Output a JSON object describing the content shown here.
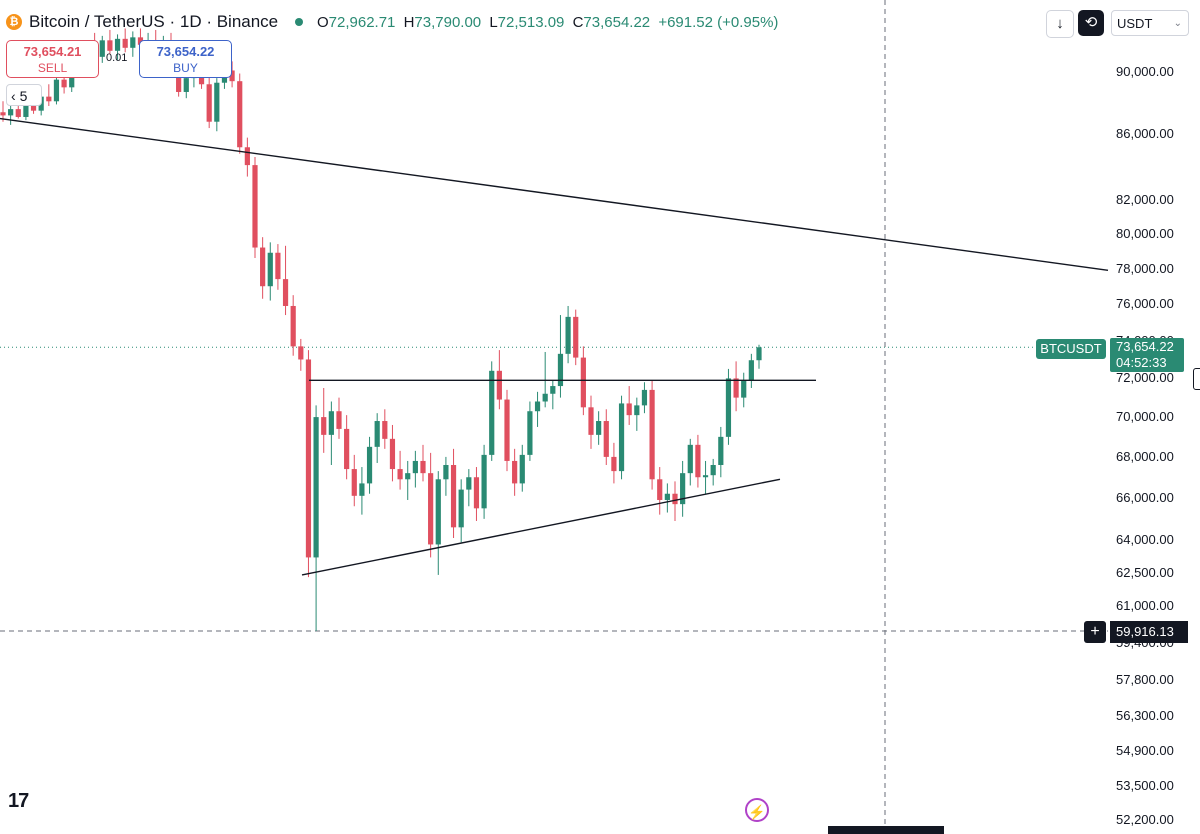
{
  "header": {
    "coin_glyph": "₿",
    "symbol_title": "Bitcoin / TetherUS · 1D · Binance",
    "ohlc": {
      "o_label": "O",
      "o_value": "72,962.71",
      "h_label": "H",
      "h_value": "73,790.00",
      "l_label": "L",
      "l_value": "72,513.09",
      "c_label": "C",
      "c_value": "73,654.22",
      "change": "+691.52 (+0.95%)"
    },
    "status_color": "#2a8a73"
  },
  "trade": {
    "sell_price": "73,654.21",
    "sell_label": "SELL",
    "buy_price": "73,654.22",
    "buy_label": "BUY",
    "spread": "0.01"
  },
  "collapse_indicator": {
    "glyph": "‹",
    "count": "5"
  },
  "toolbar": {
    "down_icon": "↓",
    "sync_icon": "⟲",
    "currency": "USDT",
    "currency_chevron": "⌄"
  },
  "price_axis": {
    "labels": [
      "90,000.00",
      "86,000.00",
      "82,000.00",
      "80,000.00",
      "78,000.00",
      "76,000.00",
      "74,000.00",
      "72,000.00",
      "70,000.00",
      "68,000.00",
      "66,000.00",
      "64,000.00",
      "62,500.00",
      "61,000.00",
      "59,400.00",
      "57,800.00",
      "56,300.00",
      "54,900.00",
      "53,500.00",
      "52,200.00"
    ],
    "symbol_tag": "BTCUSDT",
    "last_price": "73,654.22",
    "countdown": "04:52:33",
    "crosshair_price": "59,916.13",
    "crosshair_plus": "+"
  },
  "logo_text": "17",
  "bolt_icon": "⚡",
  "colors": {
    "up": "#2a8a73",
    "down": "#e04f5f",
    "line": "#131722"
  },
  "chart_data": {
    "type": "candlestick",
    "scale": "log",
    "ylim": [
      52000,
      93000
    ],
    "note_trendlines": "downtrend line, flat resistance ~71,900, rising support",
    "candles": [
      {
        "o": 87400,
        "h": 88100,
        "l": 86800,
        "c": 87200
      },
      {
        "o": 87200,
        "h": 87900,
        "l": 86600,
        "c": 87600
      },
      {
        "o": 87600,
        "h": 88300,
        "l": 87000,
        "c": 87100
      },
      {
        "o": 87100,
        "h": 88200,
        "l": 86900,
        "c": 88000
      },
      {
        "o": 88000,
        "h": 88800,
        "l": 87300,
        "c": 87500
      },
      {
        "o": 87500,
        "h": 88600,
        "l": 87200,
        "c": 88400
      },
      {
        "o": 88400,
        "h": 89200,
        "l": 87800,
        "c": 88100
      },
      {
        "o": 88100,
        "h": 89800,
        "l": 87900,
        "c": 89500
      },
      {
        "o": 89500,
        "h": 90200,
        "l": 88600,
        "c": 89000
      },
      {
        "o": 89000,
        "h": 90500,
        "l": 88700,
        "c": 90300
      },
      {
        "o": 90300,
        "h": 91200,
        "l": 89800,
        "c": 90900
      },
      {
        "o": 90900,
        "h": 92000,
        "l": 90200,
        "c": 91700
      },
      {
        "o": 91700,
        "h": 92600,
        "l": 90800,
        "c": 91000
      },
      {
        "o": 91000,
        "h": 92400,
        "l": 90600,
        "c": 92100
      },
      {
        "o": 92100,
        "h": 92800,
        "l": 91200,
        "c": 91400
      },
      {
        "o": 91400,
        "h": 92500,
        "l": 90800,
        "c": 92200
      },
      {
        "o": 92200,
        "h": 92900,
        "l": 91300,
        "c": 91600
      },
      {
        "o": 91600,
        "h": 92700,
        "l": 91000,
        "c": 92300
      },
      {
        "o": 92300,
        "h": 92900,
        "l": 91400,
        "c": 91800
      },
      {
        "o": 91800,
        "h": 92600,
        "l": 91200,
        "c": 92000
      },
      {
        "o": 92000,
        "h": 92800,
        "l": 91100,
        "c": 91300
      },
      {
        "o": 91300,
        "h": 92400,
        "l": 90700,
        "c": 91900
      },
      {
        "o": 91900,
        "h": 92600,
        "l": 89900,
        "c": 90200
      },
      {
        "o": 90200,
        "h": 90800,
        "l": 88400,
        "c": 88700
      },
      {
        "o": 88700,
        "h": 89900,
        "l": 88300,
        "c": 89600
      },
      {
        "o": 89600,
        "h": 90600,
        "l": 89000,
        "c": 90100
      },
      {
        "o": 90100,
        "h": 90700,
        "l": 88900,
        "c": 89200
      },
      {
        "o": 89200,
        "h": 89800,
        "l": 86400,
        "c": 86800
      },
      {
        "o": 86800,
        "h": 89600,
        "l": 86200,
        "c": 89300
      },
      {
        "o": 89300,
        "h": 90900,
        "l": 88900,
        "c": 90100
      },
      {
        "o": 90100,
        "h": 90700,
        "l": 89000,
        "c": 89400
      },
      {
        "o": 89400,
        "h": 89900,
        "l": 84800,
        "c": 85200
      },
      {
        "o": 85200,
        "h": 85800,
        "l": 83400,
        "c": 84100
      },
      {
        "o": 84100,
        "h": 84600,
        "l": 78600,
        "c": 79200
      },
      {
        "o": 79200,
        "h": 79800,
        "l": 76300,
        "c": 77000
      },
      {
        "o": 77000,
        "h": 79500,
        "l": 76200,
        "c": 78900
      },
      {
        "o": 78900,
        "h": 79400,
        "l": 76800,
        "c": 77400
      },
      {
        "o": 77400,
        "h": 79300,
        "l": 75400,
        "c": 75900
      },
      {
        "o": 75900,
        "h": 76500,
        "l": 73200,
        "c": 73700
      },
      {
        "o": 73700,
        "h": 74100,
        "l": 72400,
        "c": 73000
      },
      {
        "o": 73000,
        "h": 73500,
        "l": 62300,
        "c": 63200
      },
      {
        "o": 63200,
        "h": 70600,
        "l": 59900,
        "c": 70000
      },
      {
        "o": 70000,
        "h": 71500,
        "l": 68200,
        "c": 69100
      },
      {
        "o": 69100,
        "h": 70800,
        "l": 67600,
        "c": 70300
      },
      {
        "o": 70300,
        "h": 71000,
        "l": 68900,
        "c": 69400
      },
      {
        "o": 69400,
        "h": 70100,
        "l": 66900,
        "c": 67400
      },
      {
        "o": 67400,
        "h": 68100,
        "l": 65600,
        "c": 66100
      },
      {
        "o": 66100,
        "h": 67500,
        "l": 65200,
        "c": 66700
      },
      {
        "o": 66700,
        "h": 69000,
        "l": 66200,
        "c": 68500
      },
      {
        "o": 68500,
        "h": 70200,
        "l": 67700,
        "c": 69800
      },
      {
        "o": 69800,
        "h": 70400,
        "l": 68400,
        "c": 68900
      },
      {
        "o": 68900,
        "h": 69600,
        "l": 66800,
        "c": 67400
      },
      {
        "o": 67400,
        "h": 68300,
        "l": 66400,
        "c": 66900
      },
      {
        "o": 66900,
        "h": 67800,
        "l": 65900,
        "c": 67200
      },
      {
        "o": 67200,
        "h": 68300,
        "l": 66500,
        "c": 67800
      },
      {
        "o": 67800,
        "h": 68600,
        "l": 66800,
        "c": 67200
      },
      {
        "o": 67200,
        "h": 68200,
        "l": 63200,
        "c": 63800
      },
      {
        "o": 63800,
        "h": 67300,
        "l": 62400,
        "c": 66900
      },
      {
        "o": 66900,
        "h": 68000,
        "l": 66100,
        "c": 67600
      },
      {
        "o": 67600,
        "h": 68400,
        "l": 64100,
        "c": 64600
      },
      {
        "o": 64600,
        "h": 66900,
        "l": 63900,
        "c": 66400
      },
      {
        "o": 66400,
        "h": 67400,
        "l": 65600,
        "c": 67000
      },
      {
        "o": 67000,
        "h": 67500,
        "l": 64900,
        "c": 65500
      },
      {
        "o": 65500,
        "h": 68600,
        "l": 65000,
        "c": 68100
      },
      {
        "o": 68100,
        "h": 72900,
        "l": 67800,
        "c": 72400
      },
      {
        "o": 72400,
        "h": 73500,
        "l": 70400,
        "c": 70900
      },
      {
        "o": 70900,
        "h": 71400,
        "l": 67300,
        "c": 67800
      },
      {
        "o": 67800,
        "h": 68400,
        "l": 66100,
        "c": 66700
      },
      {
        "o": 66700,
        "h": 68600,
        "l": 66300,
        "c": 68100
      },
      {
        "o": 68100,
        "h": 70800,
        "l": 67800,
        "c": 70300
      },
      {
        "o": 70300,
        "h": 71300,
        "l": 69500,
        "c": 70800
      },
      {
        "o": 70800,
        "h": 73400,
        "l": 70500,
        "c": 71200
      },
      {
        "o": 71200,
        "h": 71900,
        "l": 70400,
        "c": 71600
      },
      {
        "o": 71600,
        "h": 75400,
        "l": 71000,
        "c": 73300
      },
      {
        "o": 73300,
        "h": 75900,
        "l": 72800,
        "c": 75300
      },
      {
        "o": 75300,
        "h": 75700,
        "l": 72700,
        "c": 73100
      },
      {
        "o": 73100,
        "h": 73700,
        "l": 70100,
        "c": 70500
      },
      {
        "o": 70500,
        "h": 71100,
        "l": 68400,
        "c": 69100
      },
      {
        "o": 69100,
        "h": 70300,
        "l": 68600,
        "c": 69800
      },
      {
        "o": 69800,
        "h": 70400,
        "l": 67600,
        "c": 68000
      },
      {
        "o": 68000,
        "h": 68700,
        "l": 66700,
        "c": 67300
      },
      {
        "o": 67300,
        "h": 71100,
        "l": 66900,
        "c": 70700
      },
      {
        "o": 70700,
        "h": 71600,
        "l": 69600,
        "c": 70100
      },
      {
        "o": 70100,
        "h": 71000,
        "l": 69300,
        "c": 70600
      },
      {
        "o": 70600,
        "h": 71800,
        "l": 70200,
        "c": 71400
      },
      {
        "o": 71400,
        "h": 71900,
        "l": 66400,
        "c": 66900
      },
      {
        "o": 66900,
        "h": 67500,
        "l": 65200,
        "c": 65900
      },
      {
        "o": 65900,
        "h": 66700,
        "l": 65300,
        "c": 66200
      },
      {
        "o": 66200,
        "h": 66800,
        "l": 64900,
        "c": 65700
      },
      {
        "o": 65700,
        "h": 67800,
        "l": 65100,
        "c": 67200
      },
      {
        "o": 67200,
        "h": 68900,
        "l": 66600,
        "c": 68600
      },
      {
        "o": 68600,
        "h": 69100,
        "l": 66500,
        "c": 67000
      },
      {
        "o": 67000,
        "h": 67800,
        "l": 66200,
        "c": 67100
      },
      {
        "o": 67100,
        "h": 67900,
        "l": 66600,
        "c": 67600
      },
      {
        "o": 67600,
        "h": 69500,
        "l": 67000,
        "c": 69000
      },
      {
        "o": 69000,
        "h": 72500,
        "l": 68600,
        "c": 72000
      },
      {
        "o": 72000,
        "h": 72900,
        "l": 70300,
        "c": 71000
      },
      {
        "o": 71000,
        "h": 72300,
        "l": 70500,
        "c": 71900
      },
      {
        "o": 71900,
        "h": 73300,
        "l": 71500,
        "c": 72960
      },
      {
        "o": 72960,
        "h": 73790,
        "l": 72510,
        "c": 73650
      }
    ]
  }
}
